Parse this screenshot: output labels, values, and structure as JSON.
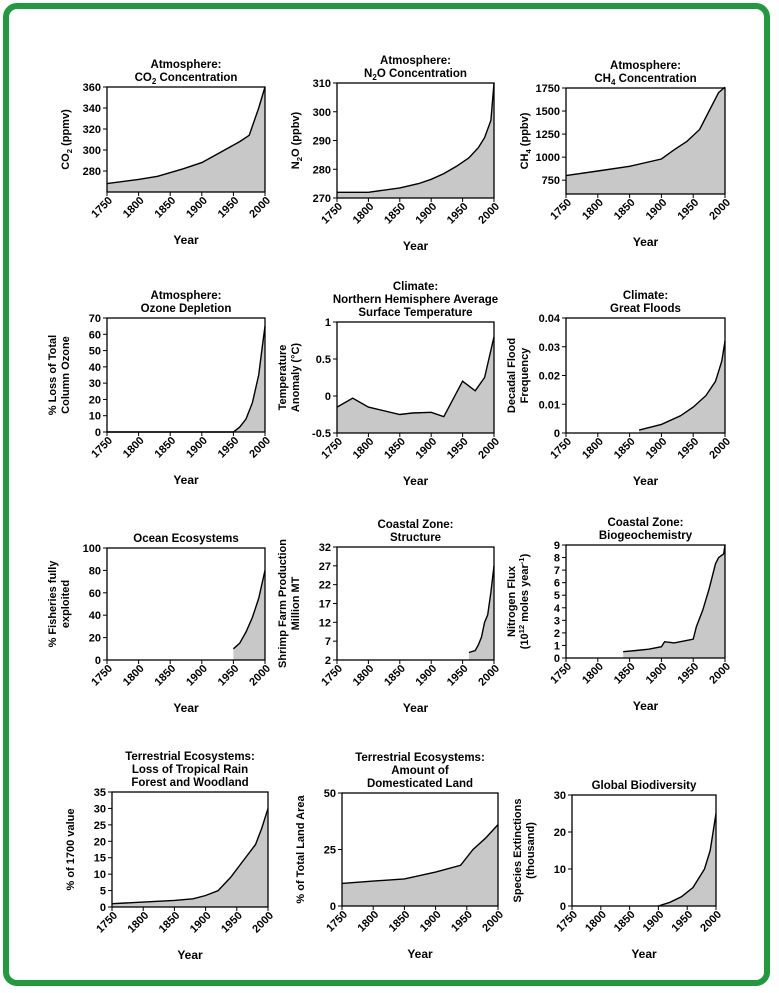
{
  "colors": {
    "border": "#1f9a3c",
    "fill": "#c8c8c8",
    "line": "#000000"
  },
  "chart_data": [
    {
      "type": "area",
      "title": [
        "Atmosphere:",
        "CO_2 Concentration"
      ],
      "xlabel": "Year",
      "ylabel": [
        "CO_2 (ppmv)"
      ],
      "xlim": [
        1750,
        2000
      ],
      "ylim": [
        260,
        360
      ],
      "xticks": [
        1750,
        1800,
        1850,
        1900,
        1950,
        2000
      ],
      "yticks": [
        280,
        300,
        320,
        340,
        360
      ],
      "x": [
        1750,
        1800,
        1830,
        1870,
        1900,
        1930,
        1960,
        1975,
        1990,
        2000
      ],
      "y": [
        268,
        272,
        275,
        282,
        288,
        298,
        308,
        314,
        340,
        360
      ]
    },
    {
      "type": "area",
      "title": [
        "Atmosphere:",
        "N_2O Concentration"
      ],
      "xlabel": "Year",
      "ylabel": [
        "N_2O (ppbv)"
      ],
      "xlim": [
        1750,
        2000
      ],
      "ylim": [
        270,
        310
      ],
      "xticks": [
        1750,
        1800,
        1850,
        1900,
        1950,
        2000
      ],
      "yticks": [
        270,
        280,
        290,
        300,
        310
      ],
      "x": [
        1750,
        1800,
        1850,
        1880,
        1900,
        1920,
        1940,
        1960,
        1975,
        1985,
        1995,
        2000
      ],
      "y": [
        272,
        272,
        273.5,
        275,
        276.5,
        278.5,
        281,
        284,
        287.5,
        291,
        297,
        310
      ]
    },
    {
      "type": "area",
      "title": [
        "Atmosphere:",
        "CH_4 Concentration"
      ],
      "xlabel": "Year",
      "ylabel": [
        "CH_4 (ppbv)"
      ],
      "xlim": [
        1750,
        2000
      ],
      "ylim": [
        600,
        1750
      ],
      "xticks": [
        1750,
        1800,
        1850,
        1900,
        1950,
        2000
      ],
      "yticks": [
        750,
        1000,
        1250,
        1500,
        1750
      ],
      "x": [
        1750,
        1800,
        1850,
        1900,
        1920,
        1940,
        1960,
        1975,
        1990,
        2000
      ],
      "y": [
        800,
        850,
        900,
        980,
        1080,
        1170,
        1300,
        1500,
        1700,
        1760
      ]
    },
    {
      "type": "area",
      "title": [
        "Atmosphere:",
        "Ozone Depletion"
      ],
      "xlabel": "Year",
      "ylabel": [
        "% Loss of Total",
        "Column Ozone"
      ],
      "xlim": [
        1750,
        2000
      ],
      "ylim": [
        0,
        70
      ],
      "xticks": [
        1750,
        1800,
        1850,
        1900,
        1950,
        2000
      ],
      "yticks": [
        0,
        10,
        20,
        30,
        40,
        50,
        60,
        70
      ],
      "x": [
        1750,
        1950,
        1960,
        1970,
        1980,
        1990,
        1995,
        2000
      ],
      "y": [
        0,
        0,
        3,
        8,
        18,
        35,
        50,
        65
      ]
    },
    {
      "type": "area",
      "title": [
        "Climate:",
        "Northern Hemisphere Average",
        "Surface Temperature"
      ],
      "xlabel": "Year",
      "ylabel": [
        "Temperature",
        "Anomaly (°C)"
      ],
      "xlim": [
        1750,
        2000
      ],
      "ylim": [
        -0.5,
        1.0
      ],
      "xticks": [
        1750,
        1800,
        1850,
        1900,
        1950,
        2000
      ],
      "yticks": [
        -0.5,
        0,
        0.5,
        1.0
      ],
      "x": [
        1750,
        1775,
        1800,
        1850,
        1870,
        1900,
        1920,
        1950,
        1970,
        1985,
        2000
      ],
      "y": [
        -0.15,
        -0.03,
        -0.15,
        -0.25,
        -0.23,
        -0.22,
        -0.28,
        0.2,
        0.07,
        0.25,
        0.8
      ]
    },
    {
      "type": "area",
      "title": [
        "Climate:",
        "Great Floods"
      ],
      "xlabel": "Year",
      "ylabel": [
        "Decadal Flood",
        "Frequency"
      ],
      "xlim": [
        1750,
        2000
      ],
      "ylim": [
        0,
        0.04
      ],
      "xticks": [
        1750,
        1800,
        1850,
        1900,
        1950,
        2000
      ],
      "yticks": [
        0,
        0.01,
        0.02,
        0.03,
        0.04
      ],
      "x": [
        1865,
        1900,
        1930,
        1950,
        1970,
        1985,
        1995,
        2000
      ],
      "y": [
        0.001,
        0.003,
        0.006,
        0.009,
        0.013,
        0.018,
        0.025,
        0.032
      ]
    },
    {
      "type": "area",
      "title": [
        "Ocean Ecosystems"
      ],
      "xlabel": "Year",
      "ylabel": [
        "% Fisheries fully",
        "exploited"
      ],
      "xlim": [
        1750,
        2000
      ],
      "ylim": [
        0,
        100
      ],
      "xticks": [
        1750,
        1800,
        1850,
        1900,
        1950,
        2000
      ],
      "yticks": [
        0,
        20,
        40,
        60,
        80,
        100
      ],
      "x": [
        1950,
        1960,
        1970,
        1980,
        1990,
        2000
      ],
      "y": [
        10,
        15,
        25,
        38,
        55,
        80
      ]
    },
    {
      "type": "area",
      "title": [
        "Coastal Zone:",
        "Structure"
      ],
      "xlabel": "Year",
      "ylabel": [
        "Shrimp Farm Production",
        "Million MT"
      ],
      "xlim": [
        1750,
        2000
      ],
      "ylim": [
        2,
        32
      ],
      "xticks": [
        1750,
        1800,
        1850,
        1900,
        1950,
        2000
      ],
      "yticks": [
        2,
        7,
        12,
        17,
        22,
        27,
        32
      ],
      "x": [
        1960,
        1970,
        1975,
        1980,
        1985,
        1990,
        1995,
        2000
      ],
      "y": [
        4,
        4.5,
        6,
        8,
        12,
        14,
        20,
        27
      ]
    },
    {
      "type": "area",
      "title": [
        "Coastal Zone:",
        "Biogeochemistry"
      ],
      "xlabel": "Year",
      "ylabel": [
        "Nitrogen Flux",
        "(10^12 moles year^-1)"
      ],
      "xlim": [
        1750,
        2000
      ],
      "ylim": [
        0,
        9
      ],
      "xticks": [
        1750,
        1800,
        1850,
        1900,
        1950,
        2000
      ],
      "yticks": [
        0,
        1,
        2,
        3,
        4,
        5,
        6,
        7,
        8,
        9
      ],
      "x": [
        1840,
        1860,
        1880,
        1900,
        1905,
        1920,
        1940,
        1950,
        1955,
        1965,
        1975,
        1985,
        1990,
        1998,
        2000
      ],
      "y": [
        0.5,
        0.6,
        0.7,
        0.9,
        1.3,
        1.2,
        1.4,
        1.5,
        2.5,
        3.8,
        5.5,
        7.5,
        8,
        8.3,
        9
      ]
    },
    {
      "type": "area",
      "title": [
        "Terrestrial Ecosystems:",
        "Loss of Tropical Rain",
        "Forest and Woodland"
      ],
      "xlabel": "Year",
      "ylabel": [
        "% of 1700 value"
      ],
      "xlim": [
        1750,
        2000
      ],
      "ylim": [
        0,
        35
      ],
      "xticks": [
        1750,
        1800,
        1850,
        1900,
        1950,
        2000
      ],
      "yticks": [
        0,
        5,
        10,
        15,
        20,
        25,
        30,
        35
      ],
      "x": [
        1750,
        1800,
        1850,
        1880,
        1900,
        1920,
        1940,
        1960,
        1980,
        1990,
        2000
      ],
      "y": [
        1,
        1.5,
        2,
        2.5,
        3.5,
        5,
        9,
        14,
        19,
        24,
        30
      ]
    },
    {
      "type": "area",
      "title": [
        "Terrestrial Ecosystems:",
        "Amount of",
        "Domesticated Land"
      ],
      "xlabel": "Year",
      "ylabel": [
        "% of Total Land Area"
      ],
      "xlim": [
        1750,
        2000
      ],
      "ylim": [
        0,
        50
      ],
      "xticks": [
        1750,
        1800,
        1850,
        1900,
        1950,
        2000
      ],
      "yticks": [
        0,
        25,
        50
      ],
      "x": [
        1750,
        1800,
        1850,
        1900,
        1940,
        1960,
        1980,
        2000
      ],
      "y": [
        10,
        11,
        12,
        15,
        18,
        25,
        30,
        36
      ]
    },
    {
      "type": "area",
      "title": [
        "Global Biodiversity"
      ],
      "xlabel": "Year",
      "ylabel": [
        "Species Extinctions",
        "(thousand)"
      ],
      "xlim": [
        1750,
        2000
      ],
      "ylim": [
        0,
        30
      ],
      "xticks": [
        1750,
        1800,
        1850,
        1900,
        1950,
        2000
      ],
      "yticks": [
        0,
        10,
        20,
        30
      ],
      "x": [
        1900,
        1920,
        1940,
        1960,
        1980,
        1990,
        2000
      ],
      "y": [
        0,
        1,
        2.5,
        5,
        10,
        15,
        25
      ]
    }
  ]
}
